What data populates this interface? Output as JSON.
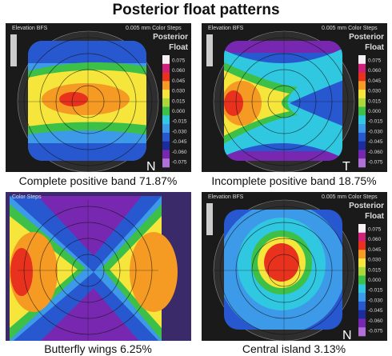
{
  "title": "Posterior float patterns",
  "panels": [
    {
      "header_left": "Elevation BFS",
      "header_right": "0.005 mm Color Steps",
      "label_1": "Posterior",
      "label_2": "Float",
      "scale": [
        "0.075",
        "0.060",
        "0.045",
        "0.030",
        "0.015",
        "0.000",
        "-0.015",
        "-0.030",
        "-0.045",
        "-0.060",
        "-0.075"
      ],
      "corner": "N",
      "caption": "Complete positive band 71.87%"
    },
    {
      "header_left": "Elevation BFS",
      "header_right": "0.005 mm Color Steps",
      "label_1": "Posterior",
      "label_2": "Float",
      "scale": [
        "0.075",
        "0.060",
        "0.045",
        "0.030",
        "0.015",
        "0.000",
        "-0.015",
        "-0.030",
        "-0.045",
        "-0.060",
        "-0.075"
      ],
      "corner": "T",
      "caption": "Incomplete positive band 18.75%"
    },
    {
      "header_left": "Color Steps",
      "caption": "Butterfly wings 6.25%"
    },
    {
      "header_left": "Elevation BFS",
      "header_right": "0.005 mm Color Steps",
      "label_1": "Posterior",
      "label_2": "Float",
      "scale": [
        "0.075",
        "0.060",
        "0.045",
        "0.030",
        "0.015",
        "0.000",
        "-0.015",
        "-0.030",
        "-0.045",
        "-0.060",
        "-0.075"
      ],
      "corner": "N",
      "caption": "Central island 3.13%"
    }
  ]
}
